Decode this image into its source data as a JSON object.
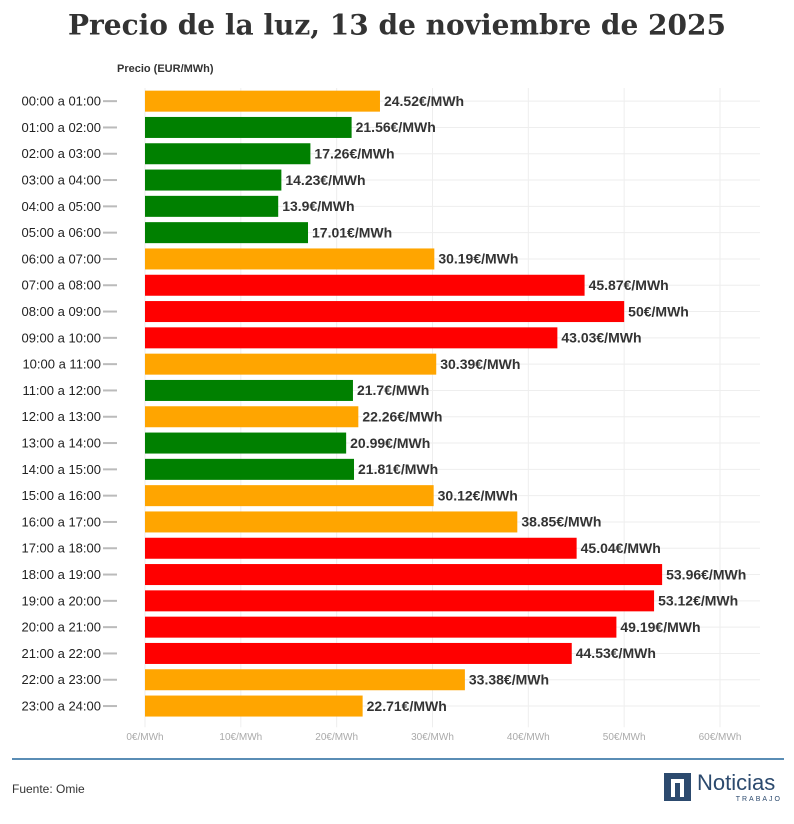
{
  "chart_data": {
    "type": "barh",
    "title": "Precio de la luz, 13 de noviembre de 2025",
    "x_label": "Precio (EUR/MWh)",
    "categories": [
      "00:00 a 01:00",
      "01:00 a 02:00",
      "02:00 a 03:00",
      "03:00 a 04:00",
      "04:00 a 05:00",
      "05:00 a 06:00",
      "06:00 a 07:00",
      "07:00 a 08:00",
      "08:00 a 09:00",
      "09:00 a 10:00",
      "10:00 a 11:00",
      "11:00 a 12:00",
      "12:00 a 13:00",
      "13:00 a 14:00",
      "14:00 a 15:00",
      "15:00 a 16:00",
      "16:00 a 17:00",
      "17:00 a 18:00",
      "18:00 a 19:00",
      "19:00 a 20:00",
      "20:00 a 21:00",
      "21:00 a 22:00",
      "22:00 a 23:00",
      "23:00 a 24:00"
    ],
    "values": [
      24.52,
      21.56,
      17.26,
      14.23,
      13.9,
      17.01,
      30.19,
      45.87,
      50,
      43.03,
      30.39,
      21.7,
      22.26,
      20.99,
      21.81,
      30.12,
      38.85,
      45.04,
      53.96,
      53.12,
      49.19,
      44.53,
      33.38,
      22.71
    ],
    "value_labels": [
      "24.52€/MWh",
      "21.56€/MWh",
      "17.26€/MWh",
      "14.23€/MWh",
      "13.9€/MWh",
      "17.01€/MWh",
      "30.19€/MWh",
      "45.87€/MWh",
      "50€/MWh",
      "43.03€/MWh",
      "30.39€/MWh",
      "21.7€/MWh",
      "22.26€/MWh",
      "20.99€/MWh",
      "21.81€/MWh",
      "30.12€/MWh",
      "38.85€/MWh",
      "45.04€/MWh",
      "53.96€/MWh",
      "53.12€/MWh",
      "49.19€/MWh",
      "44.53€/MWh",
      "33.38€/MWh",
      "22.71€/MWh"
    ],
    "colors": [
      "#ffa500",
      "#008000",
      "#008000",
      "#008000",
      "#008000",
      "#008000",
      "#ffa500",
      "#ff0000",
      "#ff0000",
      "#ff0000",
      "#ffa500",
      "#008000",
      "#ffa500",
      "#008000",
      "#008000",
      "#ffa500",
      "#ffa500",
      "#ff0000",
      "#ff0000",
      "#ff0000",
      "#ff0000",
      "#ff0000",
      "#ffa500",
      "#ffa500"
    ],
    "xlim": [
      0,
      60
    ],
    "xticks": [
      {
        "value": 0,
        "label": "0€/MWh"
      },
      {
        "value": 10,
        "label": "10€/MWh"
      },
      {
        "value": 20,
        "label": "20€/MWh"
      },
      {
        "value": 30,
        "label": "30€/MWh"
      },
      {
        "value": 40,
        "label": "40€/MWh"
      },
      {
        "value": 50,
        "label": "50€/MWh"
      },
      {
        "value": 60,
        "label": "60€/MWh"
      }
    ],
    "grid": true
  },
  "source": "Fuente: Omie",
  "logo": {
    "name": "Noticias",
    "sub": "TRABAJO"
  }
}
